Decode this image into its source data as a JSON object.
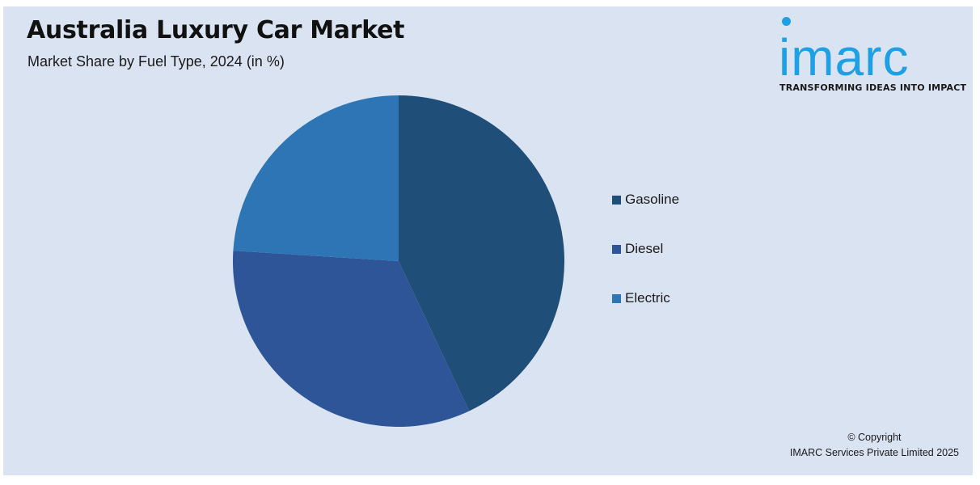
{
  "header": {
    "title": "Australia Luxury Car Market",
    "subtitle": "Market Share by Fuel Type, 2024 (in %)"
  },
  "logo": {
    "wordmark": "imarc",
    "tagline": "TRANSFORMING IDEAS INTO IMPACT",
    "color": "#1ea0e6"
  },
  "chart_data": {
    "type": "pie",
    "categories": [
      "Gasoline",
      "Diesel",
      "Electric"
    ],
    "values": [
      43,
      33,
      24
    ],
    "colors": [
      "#1f4e79",
      "#2e5597",
      "#2e75b6"
    ],
    "start_angle_deg": 0,
    "direction": "clockwise",
    "legend_position": "right"
  },
  "footer": {
    "copyright_line1": "© Copyright",
    "copyright_line2": "IMARC Services Private Limited 2025"
  }
}
